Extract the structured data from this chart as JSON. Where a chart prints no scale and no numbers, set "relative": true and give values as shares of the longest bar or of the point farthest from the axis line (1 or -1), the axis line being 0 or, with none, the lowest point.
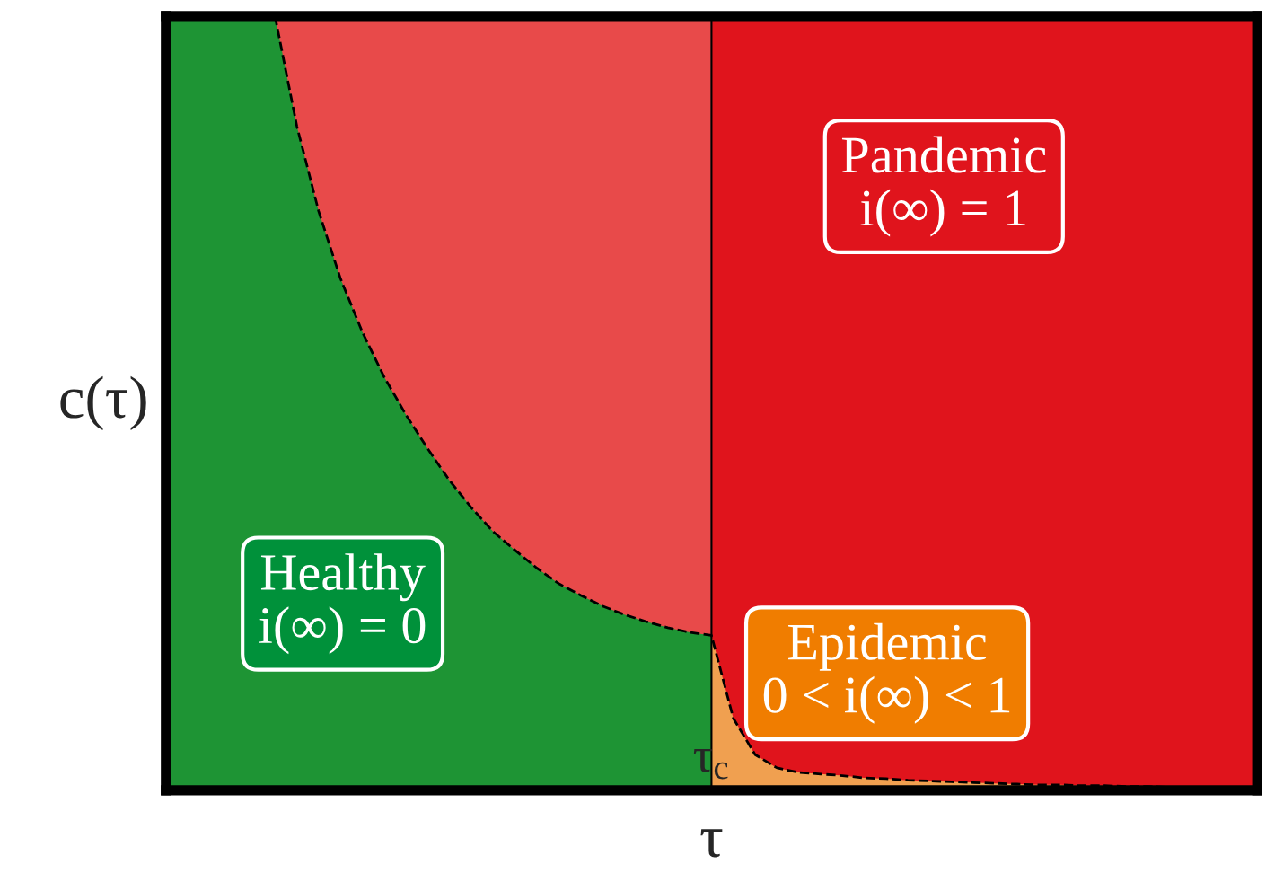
{
  "chart_data": {
    "type": "area",
    "relative": true,
    "xlabel": "τ",
    "ylabel": "c(τ)",
    "categories": [
      null,
      null,
      null,
      null,
      null,
      null,
      null,
      null,
      null,
      null,
      null,
      null,
      null,
      null,
      null,
      null,
      null,
      null,
      null,
      null,
      null,
      null,
      null,
      null,
      null,
      null,
      null,
      null,
      null,
      null,
      null,
      null,
      null,
      null,
      null,
      null,
      null,
      null,
      null,
      null,
      null,
      null,
      null,
      null,
      null,
      null,
      null,
      null,
      null,
      null,
      null
    ],
    "series": [
      {
        "color": "#1e9434",
        "values": [
          1,
          1,
          1,
          1,
          1,
          1,
          0.858,
          0.748,
          0.661,
          0.592,
          0.534,
          0.485,
          0.441,
          0.4,
          0.365,
          0.334,
          0.31,
          0.287,
          0.267,
          0.252,
          0.238,
          0.227,
          0.218,
          0.21,
          0.204,
          0.2,
          null,
          null,
          null,
          null,
          null,
          null,
          null,
          null,
          null,
          null,
          null,
          null,
          null,
          null,
          null,
          null,
          null,
          null,
          null,
          null,
          null,
          null,
          null,
          null,
          null
        ]
      },
      {
        "color": "#f0a050",
        "values": [
          null,
          null,
          null,
          null,
          null,
          null,
          null,
          null,
          null,
          null,
          null,
          null,
          null,
          null,
          null,
          null,
          null,
          null,
          null,
          null,
          null,
          null,
          null,
          null,
          null,
          0.2,
          0.093,
          0.046,
          0.029,
          0.023,
          0.021,
          0.019,
          0.016,
          0.015,
          0.013,
          0.012,
          0.011,
          0.01,
          0.009,
          0.008,
          0.007,
          0.007,
          0.006,
          0.006,
          0.005,
          0.005,
          0.004,
          0.004,
          0.003,
          0.003,
          0.003
        ]
      },
      {
        "type": "line",
        "color": "#000000",
        "line_style": "dashed",
        "values": [
          null,
          null,
          null,
          null,
          null,
          1,
          0.858,
          0.748,
          0.661,
          0.592,
          0.534,
          0.485,
          0.441,
          0.4,
          0.365,
          0.334,
          0.31,
          0.287,
          0.267,
          0.252,
          0.238,
          0.227,
          0.218,
          0.21,
          0.204,
          0.2,
          0.093,
          0.046,
          0.029,
          0.023,
          0.021,
          0.019,
          0.016,
          0.015,
          0.013,
          0.012,
          0.011,
          0.01,
          0.009,
          0.008,
          0.007,
          0.007,
          0.006,
          0.006,
          0.005,
          0.005,
          0.004,
          0.004,
          0.003,
          0.003,
          0.003
        ]
      }
    ],
    "annotations": [
      "Pandemic\ni(∞) = 1",
      "Healthy\ni(∞) = 0",
      "Epidemic\n0 < i(∞) < 1",
      "τ$_{c}$"
    ]
  }
}
